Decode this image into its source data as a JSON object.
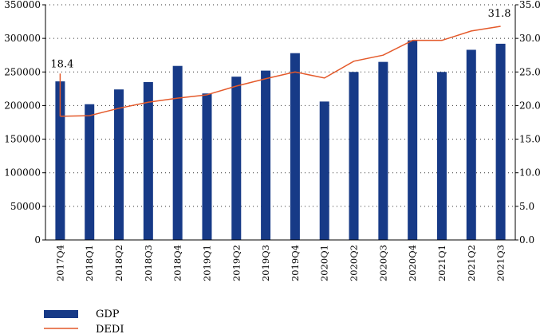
{
  "chart_data": {
    "type": "bar+line",
    "title": "",
    "xlabel": "",
    "ylabel": "",
    "y2label": "",
    "categories": [
      "2017Q4",
      "2018Q1",
      "2018Q2",
      "2018Q3",
      "2018Q4",
      "2019Q1",
      "2019Q2",
      "2019Q3",
      "2019Q4",
      "2020Q1",
      "2020Q2",
      "2020Q3",
      "2020Q4",
      "2021Q1",
      "2021Q2",
      "2021Q3"
    ],
    "series": [
      {
        "name": "GDP",
        "type": "bar",
        "axis": "left",
        "color": "#173a87",
        "values": [
          236000,
          202000,
          224000,
          235000,
          259000,
          218000,
          243000,
          252000,
          278000,
          206000,
          250000,
          265000,
          297000,
          250000,
          283000,
          292000
        ]
      },
      {
        "name": "DEDI",
        "type": "line",
        "axis": "right",
        "color": "#e4592a",
        "values": [
          18.4,
          18.5,
          19.6,
          20.5,
          21.1,
          21.6,
          22.9,
          24.0,
          25.0,
          24.1,
          26.6,
          27.5,
          29.7,
          29.7,
          31.1,
          31.8
        ]
      }
    ],
    "data_labels": [
      {
        "series": "DEDI",
        "category": "2017Q4",
        "text": "18.4"
      },
      {
        "series": "DEDI",
        "category": "2021Q3",
        "text": "31.8"
      }
    ],
    "left_axis": {
      "ylim": [
        0,
        350000
      ],
      "ticks": [
        0,
        50000,
        100000,
        150000,
        200000,
        250000,
        300000,
        350000
      ],
      "tick_labels": [
        "0",
        "50000",
        "100000",
        "150000",
        "200000",
        "250000",
        "300000",
        "350000"
      ]
    },
    "right_axis": {
      "ylim": [
        0,
        35
      ],
      "ticks": [
        0,
        5,
        10,
        15,
        20,
        25,
        30,
        35
      ],
      "tick_labels": [
        "0.0",
        "5.0",
        "10.0",
        "15.0",
        "20.0",
        "25.0",
        "30.0",
        "35.0"
      ]
    },
    "grid": {
      "horizontal": true,
      "style": "dotted"
    },
    "legend": {
      "position": "bottom-left",
      "entries": [
        "GDP",
        "DEDI"
      ]
    }
  }
}
